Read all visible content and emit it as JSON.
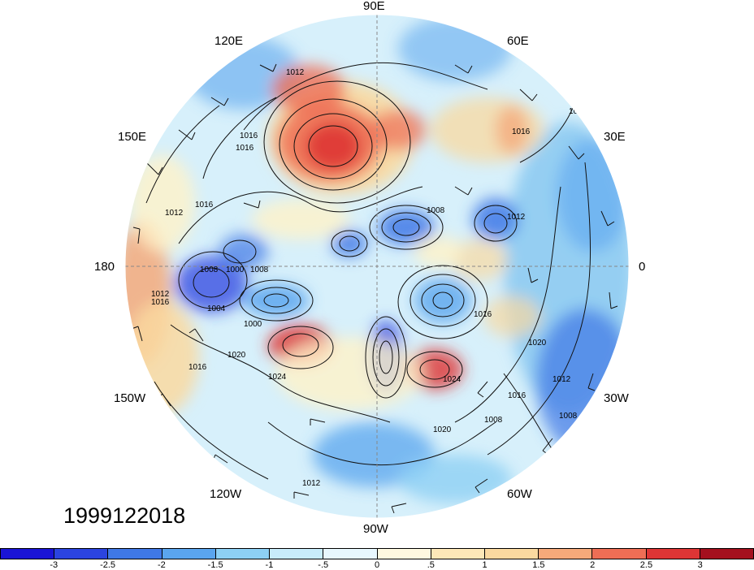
{
  "map": {
    "projection": "north-polar-stereographic",
    "field": "anomaly",
    "contour_labels": [
      "1012",
      "1016",
      "1012",
      "1016",
      "1008",
      "1000",
      "1008",
      "1004",
      "1016",
      "1012",
      "1000",
      "1020",
      "1024",
      "1016",
      "1016",
      "1012",
      "1008",
      "1016",
      "1020",
      "1024",
      "1012",
      "1016",
      "1012",
      "1008",
      "1016",
      "1020",
      "1012",
      "1008"
    ],
    "longitude_labels": {
      "90E": "90E",
      "120E": "120E",
      "60E": "60E",
      "150E": "150E",
      "30E": "30E",
      "180": "180",
      "0": "0",
      "150W": "150W",
      "30W": "30W",
      "120W": "120W",
      "60W": "60W",
      "90W": "90W"
    }
  },
  "date_label": "1999122018",
  "colorbar": {
    "colors": [
      "#1a14d6",
      "#2b44e0",
      "#3f78e6",
      "#5aa5ee",
      "#8dd0f4",
      "#c8ecfa",
      "#ffffff",
      "#fff2c8",
      "#fad9a0",
      "#f5a97a",
      "#ee6e55",
      "#de3535",
      "#a4101e"
    ],
    "tick_labels": [
      "-3",
      "-2.5",
      "-2",
      "-1.5",
      "-1",
      "-.5",
      "0",
      ".5",
      "1",
      "1.5",
      "2",
      "2.5",
      "3"
    ]
  }
}
